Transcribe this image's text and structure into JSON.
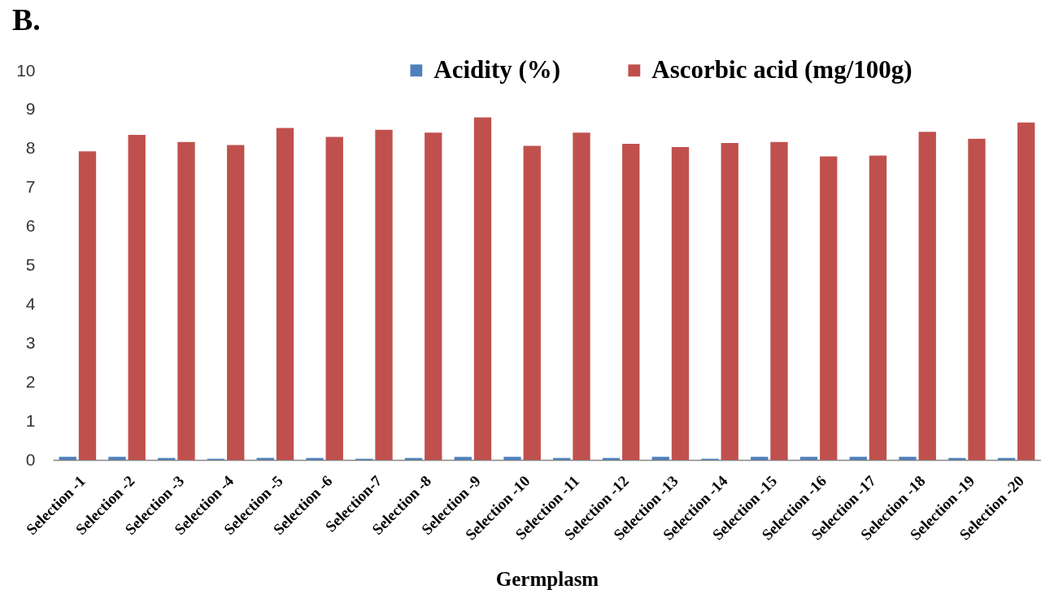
{
  "chart_data": {
    "type": "bar",
    "title": "B.",
    "xlabel": "Germplasm",
    "categories": [
      "Selection -1",
      "Selection -2",
      "Selection -3",
      "Selection -4",
      "Selection -5",
      "Selection -6",
      "Selection-7",
      "Selection -8",
      "Selection -9",
      "Selection -10",
      "Selection -11",
      "Selection -12",
      "Selection -13",
      "Selection -14",
      "Selection -15",
      "Selection -16",
      "Selection -17",
      "Selection -18",
      "Selection -19",
      "Selection -20"
    ],
    "series": [
      {
        "name": "Acidity (%)",
        "color": "#4f81bd",
        "values": [
          0.08,
          0.08,
          0.05,
          0.03,
          0.05,
          0.05,
          0.03,
          0.05,
          0.08,
          0.08,
          0.05,
          0.05,
          0.08,
          0.03,
          0.08,
          0.08,
          0.08,
          0.08,
          0.05,
          0.05
        ]
      },
      {
        "name": "Ascorbic acid (mg/100g)",
        "color": "#c0504d",
        "values": [
          7.93,
          8.35,
          8.17,
          8.09,
          8.53,
          8.3,
          8.48,
          8.41,
          8.8,
          8.07,
          8.41,
          8.12,
          8.04,
          8.14,
          8.17,
          7.8,
          7.82,
          8.43,
          8.25,
          8.67
        ]
      }
    ],
    "ylim": [
      0,
      10
    ],
    "yticks": [
      0,
      1,
      2,
      3,
      4,
      5,
      6,
      7,
      8,
      9,
      10
    ],
    "legend": "top"
  }
}
